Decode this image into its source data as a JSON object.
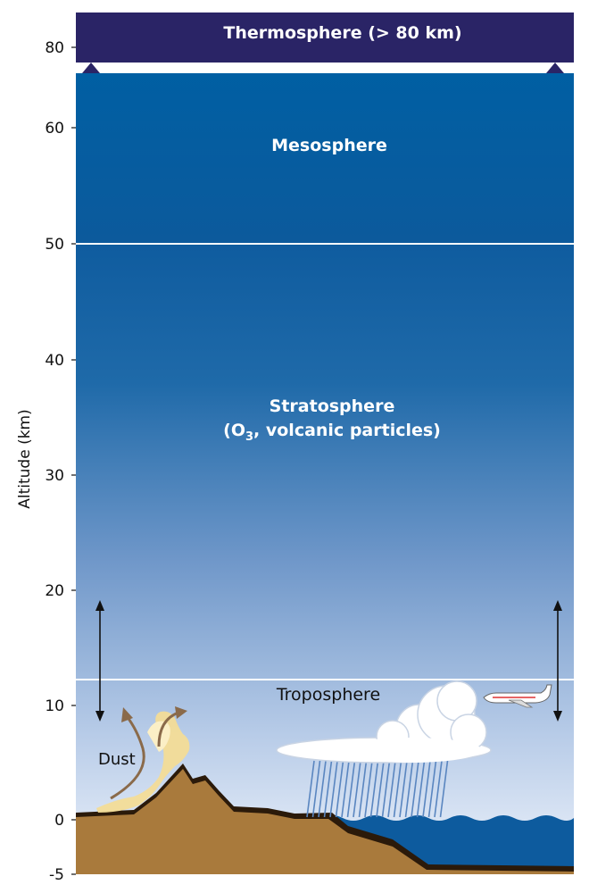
{
  "axis": {
    "title": "Altitude (km)",
    "ticks": [
      "80",
      "60",
      "50",
      "40",
      "30",
      "20",
      "10",
      "0",
      "-5"
    ]
  },
  "layers": {
    "thermosphere": "Thermosphere (> 80 km)",
    "mesosphere": "Mesosphere",
    "stratosphere_line1": "Stratosphere",
    "stratosphere_line2_pre": "(O",
    "stratosphere_line2_sub": "3",
    "stratosphere_line2_post": ", volcanic particles)",
    "troposphere": "Troposphere"
  },
  "labels": {
    "dust": "Dust"
  },
  "colors": {
    "thermosphere": "#2a2466",
    "mesosphere": "#0d5ca0",
    "ground": "#a97a3c",
    "ocean": "#0d5b9e",
    "dust": "#f3dc97",
    "rain": "#5a86c0"
  }
}
